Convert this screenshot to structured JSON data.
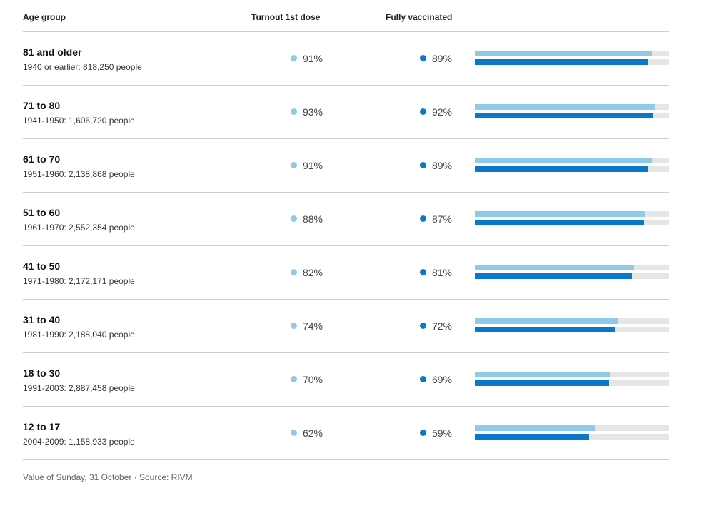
{
  "header": {
    "age_label": "Age group",
    "first_label": "Turnout 1st dose",
    "full_label": "Fully vaccinated"
  },
  "colors": {
    "first_dose": "#8fcbe8",
    "fully": "#0a78c8",
    "track": "#e6e6e6"
  },
  "chart_data": {
    "type": "bar",
    "orientation": "horizontal",
    "xlim": [
      0,
      100
    ],
    "categories": [
      "81 and older",
      "71 to 80",
      "61 to 70",
      "51 to 60",
      "41 to 50",
      "31 to 40",
      "18 to 30",
      "12 to 17"
    ],
    "series": [
      {
        "name": "Turnout 1st dose",
        "values": [
          91,
          93,
          91,
          88,
          82,
          74,
          70,
          62
        ]
      },
      {
        "name": "Fully vaccinated",
        "values": [
          89,
          92,
          89,
          87,
          81,
          72,
          69,
          59
        ]
      }
    ]
  },
  "rows": [
    {
      "age": "81 and older",
      "sub": "1940 or earlier: 818,250 people",
      "first": 91,
      "first_text": "91%",
      "full": 89,
      "full_text": "89%"
    },
    {
      "age": "71 to 80",
      "sub": "1941-1950: 1,606,720 people",
      "first": 93,
      "first_text": "93%",
      "full": 92,
      "full_text": "92%"
    },
    {
      "age": "61 to 70",
      "sub": "1951-1960: 2,138,868 people",
      "first": 91,
      "first_text": "91%",
      "full": 89,
      "full_text": "89%"
    },
    {
      "age": "51 to 60",
      "sub": "1961-1970: 2,552,354 people",
      "first": 88,
      "first_text": "88%",
      "full": 87,
      "full_text": "87%"
    },
    {
      "age": "41 to 50",
      "sub": "1971-1980: 2,172,171 people",
      "first": 82,
      "first_text": "82%",
      "full": 81,
      "full_text": "81%"
    },
    {
      "age": "31 to 40",
      "sub": "1981-1990: 2,188,040 people",
      "first": 74,
      "first_text": "74%",
      "full": 72,
      "full_text": "72%"
    },
    {
      "age": "18 to 30",
      "sub": "1991-2003: 2,887,458 people",
      "first": 70,
      "first_text": "70%",
      "full": 69,
      "full_text": "69%"
    },
    {
      "age": "12 to 17",
      "sub": "2004-2009: 1,158,933 people",
      "first": 62,
      "first_text": "62%",
      "full": 59,
      "full_text": "59%"
    }
  ],
  "footer": "Value of Sunday, 31 October · Source: RIVM"
}
